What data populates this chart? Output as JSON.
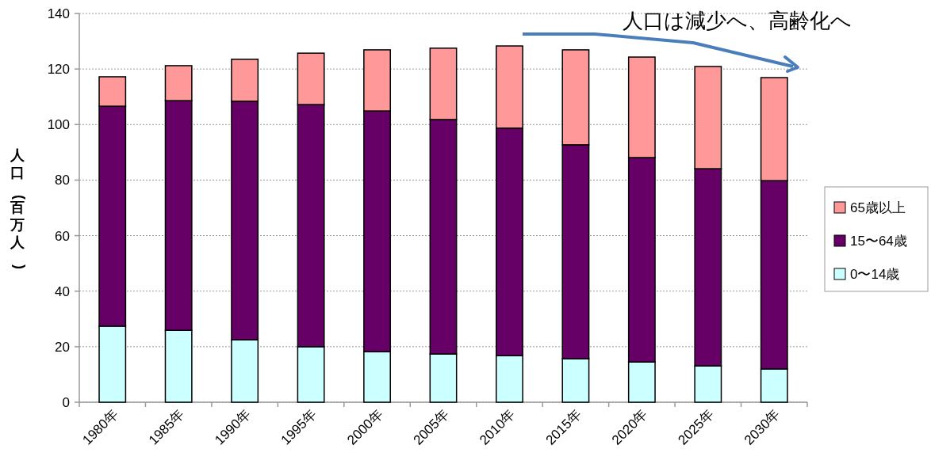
{
  "chart_data": {
    "type": "bar",
    "stacked": true,
    "ylabel": "人口(百万人)",
    "categories": [
      "1980年",
      "1985年",
      "1990年",
      "1995年",
      "2000年",
      "2005年",
      "2010年",
      "2015年",
      "2020年",
      "2025年",
      "2030年"
    ],
    "series": [
      {
        "name": "0〜14歳",
        "color": "#ccffff",
        "values": [
          27.4,
          25.9,
          22.5,
          20.0,
          18.2,
          17.4,
          16.8,
          15.7,
          14.5,
          13.1,
          12.0
        ]
      },
      {
        "name": "15〜64歳",
        "color": "#660066",
        "values": [
          79.2,
          82.7,
          85.9,
          87.2,
          86.7,
          84.4,
          81.9,
          77.0,
          73.6,
          71.0,
          67.8
        ]
      },
      {
        "name": "65歳以上",
        "color": "#ff9999",
        "values": [
          10.6,
          12.6,
          15.1,
          18.5,
          22.0,
          25.7,
          29.6,
          34.2,
          36.2,
          36.8,
          37.1
        ]
      }
    ],
    "ylim": [
      0,
      140
    ],
    "yticks": [
      0,
      20,
      40,
      60,
      80,
      100,
      120,
      140
    ],
    "grid": "y",
    "legend": "right",
    "annotations": [
      "人口は減少へ、高齢化へ"
    ]
  }
}
